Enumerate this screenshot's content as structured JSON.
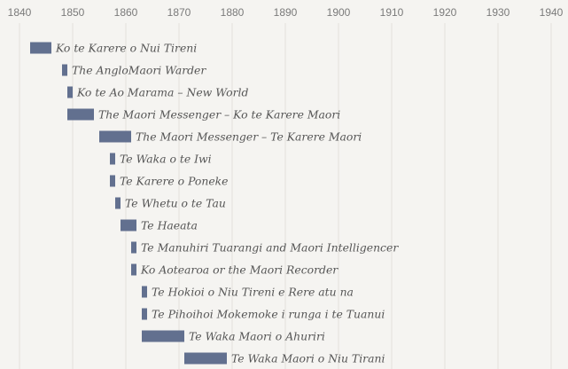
{
  "chart_data": {
    "type": "bar",
    "orientation": "horizontal",
    "subtype": "timeline",
    "title": "",
    "xlabel": "",
    "ylabel": "",
    "xlim": [
      1840,
      1940
    ],
    "x_ticks": [
      1840,
      1850,
      1860,
      1870,
      1880,
      1890,
      1900,
      1910,
      1920,
      1930,
      1940
    ],
    "x_tick_labels": [
      "1840",
      "1850",
      "1860",
      "1870",
      "1880",
      "1890",
      "1900",
      "1910",
      "1920",
      "1930",
      "1940"
    ],
    "grid": true,
    "legend": "none",
    "bar_color": "#62708f",
    "background_color": "#f5f4f1",
    "grid_color": "#e2e0dc",
    "series": [
      {
        "values": [
          {
            "label": "Ko te Karere o Nui Tireni",
            "start": 1842,
            "end": 1846
          },
          {
            "label": "The AngloMaori Warder",
            "start": 1848,
            "end": 1849
          },
          {
            "label": "Ko te Ao Marama – New World",
            "start": 1849,
            "end": 1850
          },
          {
            "label": "The Maori Messenger – Ko te Karere Maori",
            "start": 1849,
            "end": 1854
          },
          {
            "label": "The Maori Messenger – Te Karere Maori",
            "start": 1855,
            "end": 1861
          },
          {
            "label": "Te Waka o te Iwi",
            "start": 1857,
            "end": 1858
          },
          {
            "label": "Te Karere o Poneke",
            "start": 1857,
            "end": 1858
          },
          {
            "label": "Te Whetu o te Tau",
            "start": 1858,
            "end": 1859
          },
          {
            "label": "Te Haeata",
            "start": 1859,
            "end": 1862
          },
          {
            "label": "Te Manuhiri Tuarangi and Maori Intelligencer",
            "start": 1861,
            "end": 1862
          },
          {
            "label": "Ko Aotearoa or the Maori Recorder",
            "start": 1861,
            "end": 1862
          },
          {
            "label": "Te Hokioi o Niu Tireni e Rere atu na",
            "start": 1863,
            "end": 1864
          },
          {
            "label": "Te Pihoihoi Mokemoke i runga i te Tuanui",
            "start": 1863,
            "end": 1864
          },
          {
            "label": "Te Waka Maori o Ahuriri",
            "start": 1863,
            "end": 1871
          },
          {
            "label": "Te Waka Maori o Niu Tirani",
            "start": 1871,
            "end": 1879
          }
        ]
      }
    ]
  }
}
